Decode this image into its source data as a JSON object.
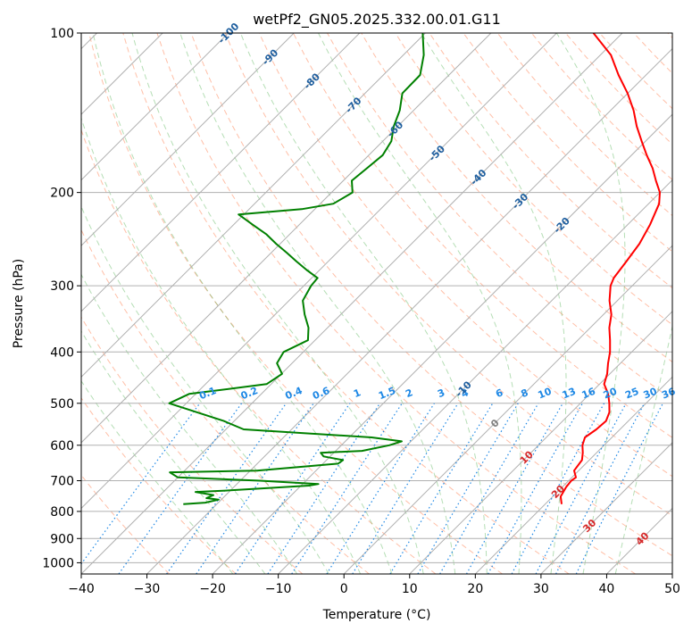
{
  "chart_data": {
    "type": "line",
    "subtype": "skew-t log-p",
    "title": "wetPf2_GN05.2025.332.00.01.G11",
    "xlabel": "Temperature (°C)",
    "ylabel": "Pressure (hPa)",
    "xlim": [
      -40,
      50
    ],
    "ylim_hpa": [
      1050,
      100
    ],
    "yscale": "log",
    "grid": true,
    "x_ticks": [
      "−40",
      "−30",
      "−20",
      "−10",
      "0",
      "10",
      "20",
      "30",
      "40",
      "50"
    ],
    "x_tick_values": [
      -40,
      -30,
      -20,
      -10,
      0,
      10,
      20,
      30,
      40,
      50
    ],
    "y_ticks": [
      "100",
      "200",
      "300",
      "400",
      "500",
      "600",
      "700",
      "800",
      "900",
      "1000"
    ],
    "y_tick_values": [
      100,
      200,
      300,
      400,
      500,
      600,
      700,
      800,
      900,
      1000
    ],
    "series": [
      {
        "color": "#ff0000",
        "points": [
          [
            775,
            22.5
          ],
          [
            750,
            21.2
          ],
          [
            720,
            20.6
          ],
          [
            700,
            20.4
          ],
          [
            690,
            20.6
          ],
          [
            670,
            19.3
          ],
          [
            640,
            18.9
          ],
          [
            620,
            17.9
          ],
          [
            600,
            16.7
          ],
          [
            580,
            15.9
          ],
          [
            560,
            16.4
          ],
          [
            540,
            16.6
          ],
          [
            520,
            15.8
          ],
          [
            500,
            14.4
          ],
          [
            480,
            12.8
          ],
          [
            460,
            10.7
          ],
          [
            440,
            9.6
          ],
          [
            420,
            8.1
          ],
          [
            400,
            6.7
          ],
          [
            380,
            4.9
          ],
          [
            360,
            2.9
          ],
          [
            340,
            1.2
          ],
          [
            320,
            -1.2
          ],
          [
            300,
            -3.3
          ],
          [
            290,
            -4.0
          ],
          [
            270,
            -4.6
          ],
          [
            250,
            -5.3
          ],
          [
            230,
            -6.6
          ],
          [
            210,
            -8.4
          ],
          [
            200,
            -10.0
          ],
          [
            190,
            -12.4
          ],
          [
            180,
            -14.8
          ],
          [
            170,
            -17.7
          ],
          [
            160,
            -20.6
          ],
          [
            150,
            -23.6
          ],
          [
            140,
            -26.5
          ],
          [
            130,
            -30.0
          ],
          [
            120,
            -34.2
          ],
          [
            110,
            -38.4
          ],
          [
            100,
            -44.4
          ]
        ]
      },
      {
        "color": "#008000",
        "points": [
          [
            775,
            -35.1
          ],
          [
            770,
            -32.0
          ],
          [
            760,
            -30.4
          ],
          [
            755,
            -32.5
          ],
          [
            745,
            -31.9
          ],
          [
            735,
            -35.1
          ],
          [
            730,
            -30.0
          ],
          [
            715,
            -18.8
          ],
          [
            710,
            -17.6
          ],
          [
            700,
            -27.0
          ],
          [
            690,
            -40.0
          ],
          [
            675,
            -42.0
          ],
          [
            670,
            -29.0
          ],
          [
            650,
            -17.7
          ],
          [
            640,
            -17.5
          ],
          [
            630,
            -21.0
          ],
          [
            620,
            -22.0
          ],
          [
            615,
            -16.0
          ],
          [
            600,
            -12.7
          ],
          [
            590,
            -11.4
          ],
          [
            580,
            -16.6
          ],
          [
            560,
            -37.3
          ],
          [
            540,
            -41.6
          ],
          [
            500,
            -52.6
          ],
          [
            480,
            -51.0
          ],
          [
            460,
            -40.7
          ],
          [
            440,
            -39.9
          ],
          [
            420,
            -42.3
          ],
          [
            400,
            -43.0
          ],
          [
            380,
            -41.1
          ],
          [
            360,
            -42.9
          ],
          [
            340,
            -45.5
          ],
          [
            320,
            -47.9
          ],
          [
            300,
            -48.9
          ],
          [
            290,
            -49.1
          ],
          [
            280,
            -52.0
          ],
          [
            270,
            -54.8
          ],
          [
            260,
            -57.6
          ],
          [
            250,
            -60.6
          ],
          [
            240,
            -63.5
          ],
          [
            230,
            -67.1
          ],
          [
            220,
            -70.8
          ],
          [
            215,
            -62.0
          ],
          [
            210,
            -58.0
          ],
          [
            200,
            -56.8
          ],
          [
            190,
            -58.7
          ],
          [
            180,
            -58.3
          ],
          [
            170,
            -57.9
          ],
          [
            160,
            -58.7
          ],
          [
            150,
            -60.6
          ],
          [
            140,
            -62.1
          ],
          [
            130,
            -64.3
          ],
          [
            120,
            -64.4
          ],
          [
            110,
            -66.9
          ],
          [
            100,
            -70.4
          ]
        ]
      }
    ],
    "isotherm_labels": [
      "-100",
      "-90",
      "-80",
      "-70",
      "-60",
      "-50",
      "-40",
      "-30",
      "-20",
      "-10",
      "0",
      "10",
      "20",
      "30",
      "40"
    ],
    "mixing_ratio_labels": [
      "0.1",
      "0.2",
      "0.4",
      "0.6",
      "1",
      "1.5",
      "2",
      "3",
      "4",
      "6",
      "8",
      "10",
      "13",
      "16",
      "20",
      "25",
      "30",
      "36"
    ],
    "colors": {
      "temperature": "#ff0000",
      "dewpoint": "#008000",
      "isotherm_cold": "#1f5f9f",
      "isotherm_warm": "#d62728",
      "isotherm_zero": "#808080",
      "dry_adiabat": "#ff7f50",
      "moist_adiabat": "#2ca02c",
      "mixing_ratio": "#1e88e5",
      "grid": "#b0b0b0"
    }
  }
}
